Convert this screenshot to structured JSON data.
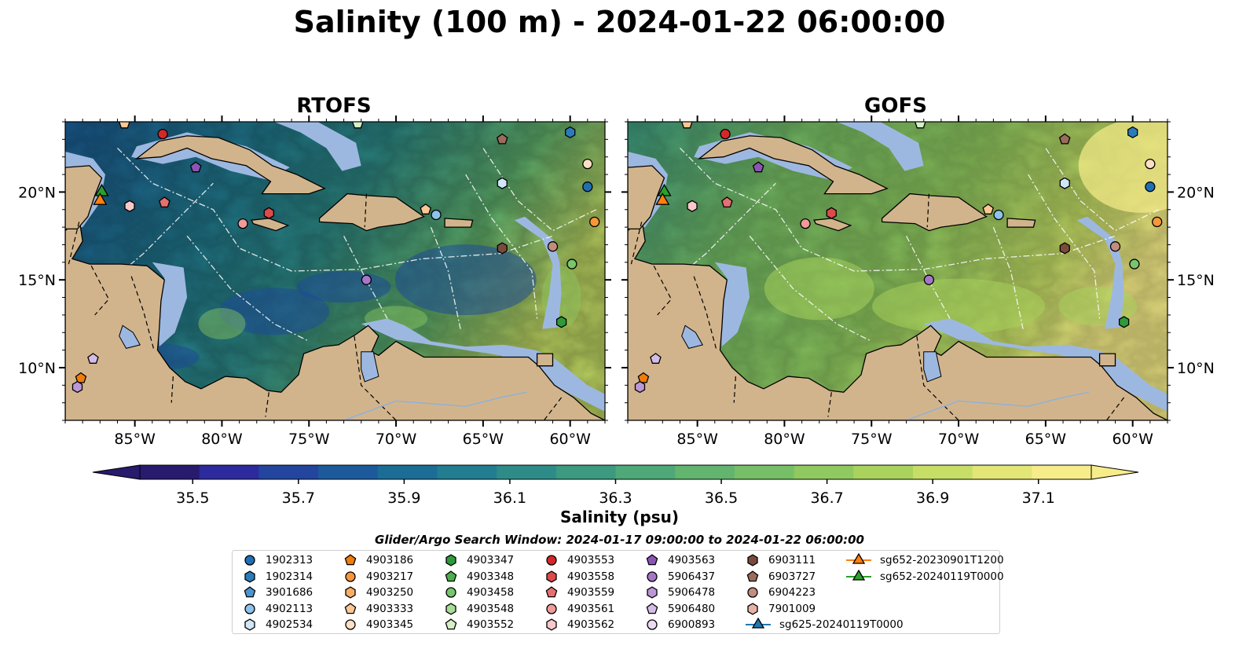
{
  "title": "Salinity (100 m) - 2024-01-22 06:00:00",
  "panels": [
    {
      "title": "RTOFS",
      "key": "rtofs"
    },
    {
      "title": "GOFS",
      "key": "gofs"
    }
  ],
  "map": {
    "lon_range": [
      -89,
      -58
    ],
    "lat_range": [
      7,
      24
    ],
    "x_ticks": [
      "85°W",
      "80°W",
      "75°W",
      "70°W",
      "65°W",
      "60°W"
    ],
    "x_tick_values": [
      -85,
      -80,
      -75,
      -70,
      -65,
      -60
    ],
    "y_ticks": [
      "10°N",
      "15°N",
      "20°N"
    ],
    "y_tick_values": [
      10,
      15,
      20
    ],
    "colors": {
      "land": "#d2b48c",
      "shelf": "#9db8e0",
      "deep_pacific": "#281a6c"
    }
  },
  "colorbar": {
    "label": "Salinity (psu)",
    "ticks": [
      "35.5",
      "35.7",
      "35.9",
      "36.1",
      "36.3",
      "36.5",
      "36.7",
      "36.9",
      "37.1"
    ],
    "tick_values": [
      35.5,
      35.7,
      35.9,
      36.1,
      36.3,
      36.5,
      36.7,
      36.9,
      37.1
    ],
    "range": [
      35.4,
      37.2
    ],
    "extend": "both",
    "colors": [
      "#281a6c",
      "#2c2a9c",
      "#23459e",
      "#1d5a9c",
      "#1b6d96",
      "#227d90",
      "#2e8c88",
      "#3c9a80",
      "#4ea878",
      "#62b46e",
      "#77bf66",
      "#8fc95f",
      "#a9d35c",
      "#c6de66",
      "#e2e676",
      "#f7ec8a"
    ]
  },
  "search_window": "Glider/Argo Search Window: 2024-01-17 09:00:00 to 2024-01-22 06:00:00",
  "legend": [
    {
      "id": "1902313",
      "marker": "circle",
      "color": "#1f6fb4"
    },
    {
      "id": "1902314",
      "marker": "hexagon",
      "color": "#2b7bba"
    },
    {
      "id": "3901686",
      "marker": "pentagon",
      "color": "#4c94cf"
    },
    {
      "id": "4902113",
      "marker": "circle",
      "color": "#8cc3ea"
    },
    {
      "id": "4902534",
      "marker": "hexagon",
      "color": "#cfe7f7"
    },
    {
      "id": "4903186",
      "marker": "pentagon",
      "color": "#f07c0c"
    },
    {
      "id": "4903217",
      "marker": "circle",
      "color": "#f7963a"
    },
    {
      "id": "4903250",
      "marker": "hexagon",
      "color": "#f9ae66"
    },
    {
      "id": "4903333",
      "marker": "pentagon",
      "color": "#fcc795"
    },
    {
      "id": "4903345",
      "marker": "circle",
      "color": "#fde0c4"
    },
    {
      "id": "4903347",
      "marker": "hexagon",
      "color": "#2f9a3a"
    },
    {
      "id": "4903348",
      "marker": "pentagon",
      "color": "#4cae4c"
    },
    {
      "id": "4903458",
      "marker": "circle",
      "color": "#78c66c"
    },
    {
      "id": "4903548",
      "marker": "hexagon",
      "color": "#a7dc95"
    },
    {
      "id": "4903552",
      "marker": "pentagon",
      "color": "#d5f0c6"
    },
    {
      "id": "4903553",
      "marker": "circle",
      "color": "#d62728"
    },
    {
      "id": "4903558",
      "marker": "hexagon",
      "color": "#dc4a4a"
    },
    {
      "id": "4903559",
      "marker": "pentagon",
      "color": "#e57070"
    },
    {
      "id": "4903561",
      "marker": "circle",
      "color": "#f09a9a"
    },
    {
      "id": "4903562",
      "marker": "hexagon",
      "color": "#f9c9c9"
    },
    {
      "id": "4903563",
      "marker": "pentagon",
      "color": "#8c55b5"
    },
    {
      "id": "5906437",
      "marker": "circle",
      "color": "#a677c9"
    },
    {
      "id": "5906478",
      "marker": "hexagon",
      "color": "#bb97d7"
    },
    {
      "id": "5906480",
      "marker": "pentagon",
      "color": "#d3bde6"
    },
    {
      "id": "6900893",
      "marker": "circle",
      "color": "#eadbf3"
    },
    {
      "id": "6903111",
      "marker": "hexagon",
      "color": "#7a4b3c"
    },
    {
      "id": "6903727",
      "marker": "pentagon",
      "color": "#9a6c5c"
    },
    {
      "id": "6904223",
      "marker": "circle",
      "color": "#c28d7f"
    },
    {
      "id": "7901009",
      "marker": "hexagon",
      "color": "#e6b2a6"
    },
    {
      "id": "sg625-20240119T0000",
      "marker": "triangle-line",
      "color": "#1f77b4"
    },
    {
      "id": "sg652-20230901T1200",
      "marker": "triangle-line",
      "color": "#ff7f0e"
    },
    {
      "id": "sg652-20240119T0000",
      "marker": "triangle-line",
      "color": "#2ca02c"
    }
  ],
  "markers": [
    {
      "id": "4903333",
      "lon": -85.6,
      "lat": 23.9
    },
    {
      "id": "4903553",
      "lon": -83.4,
      "lat": 23.3
    },
    {
      "id": "4903563",
      "lon": -81.5,
      "lat": 21.4
    },
    {
      "id": "sg652-20240119T0000",
      "lon": -86.9,
      "lat": 20.0
    },
    {
      "id": "sg652-20230901T1200",
      "lon": -87.0,
      "lat": 19.5
    },
    {
      "id": "4903562",
      "lon": -85.3,
      "lat": 19.2
    },
    {
      "id": "4903559",
      "lon": -83.3,
      "lat": 19.4
    },
    {
      "id": "4903561",
      "lon": -78.8,
      "lat": 18.2
    },
    {
      "id": "4903558",
      "lon": -77.3,
      "lat": 18.8
    },
    {
      "id": "4903552",
      "lon": -72.2,
      "lat": 23.9
    },
    {
      "id": "6903727",
      "lon": -63.9,
      "lat": 23.0
    },
    {
      "id": "1902314",
      "lon": -60.0,
      "lat": 23.4
    },
    {
      "id": "4903345",
      "lon": -59.0,
      "lat": 21.6
    },
    {
      "id": "1902313",
      "lon": -59.0,
      "lat": 20.3
    },
    {
      "id": "4902534",
      "lon": -63.9,
      "lat": 20.5
    },
    {
      "id": "4903217",
      "lon": -58.6,
      "lat": 18.3
    },
    {
      "id": "4903333",
      "lon": -68.3,
      "lat": 19.0
    },
    {
      "id": "4902113",
      "lon": -67.7,
      "lat": 18.7
    },
    {
      "id": "6903111",
      "lon": -63.9,
      "lat": 16.8
    },
    {
      "id": "6904223",
      "lon": -61.0,
      "lat": 16.9
    },
    {
      "id": "4903458",
      "lon": -59.9,
      "lat": 15.9
    },
    {
      "id": "5906437",
      "lon": -71.7,
      "lat": 15.0
    },
    {
      "id": "4903347",
      "lon": -60.5,
      "lat": 12.6
    },
    {
      "id": "5906480",
      "lon": -87.4,
      "lat": 10.5
    },
    {
      "id": "4903186",
      "lon": -88.1,
      "lat": 9.4
    },
    {
      "id": "5906478",
      "lon": -88.3,
      "lat": 8.9
    }
  ]
}
